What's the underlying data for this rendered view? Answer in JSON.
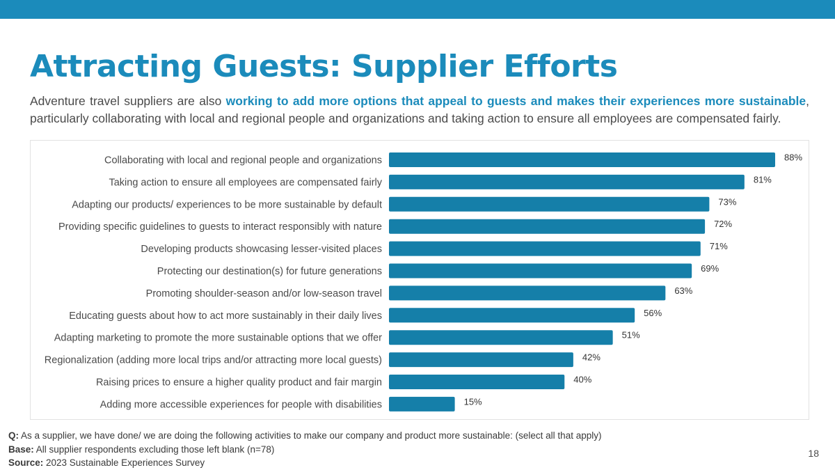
{
  "slide": {
    "title": "Attracting Guests: Supplier Efforts",
    "intro_before": "Adventure travel suppliers are also ",
    "intro_highlight": "working to add more options that appeal to guests and makes their experiences more sustainable",
    "intro_after": ", particularly collaborating with local and regional people and organizations and taking action to ensure all employees are compensated fairly.",
    "page_number": "18"
  },
  "footnotes": {
    "q_label": "Q:",
    "q_text": " As a supplier, we have done/ we are doing the following activities to make our company and product more sustainable: (select all that apply)",
    "base_label": "Base:",
    "base_text": " All supplier respondents excluding those left blank (n=78)",
    "source_label": "Source:",
    "source_text": " 2023 Sustainable Experiences Survey"
  },
  "colors": {
    "accent": "#1b8bbb",
    "bar": "#157fa9"
  },
  "chart_data": {
    "type": "bar",
    "orientation": "horizontal",
    "categories": [
      "Collaborating with local and regional people and organizations",
      "Taking action to ensure all employees are compensated fairly",
      "Adapting our products/ experiences to be more sustainable by default",
      "Providing specific guidelines to guests to interact responsibly with nature",
      "Developing products showcasing lesser-visited places",
      "Protecting our destination(s) for future generations",
      "Promoting shoulder-season and/or low-season travel",
      "Educating guests about how to act more sustainably in their daily lives",
      "Adapting marketing to promote the more sustainable options that we offer",
      "Regionalization (adding more local trips and/or attracting more local guests)",
      "Raising prices to ensure a higher quality product and fair margin",
      "Adding more accessible experiences for people with disabilities"
    ],
    "values": [
      88,
      81,
      73,
      72,
      71,
      69,
      63,
      56,
      51,
      42,
      40,
      15
    ],
    "value_labels": [
      "88%",
      "81%",
      "73%",
      "72%",
      "71%",
      "69%",
      "63%",
      "56%",
      "51%",
      "42%",
      "40%",
      "15%"
    ],
    "unit": "%",
    "xlim": [
      0,
      88
    ],
    "grid": false,
    "legend": "none"
  }
}
